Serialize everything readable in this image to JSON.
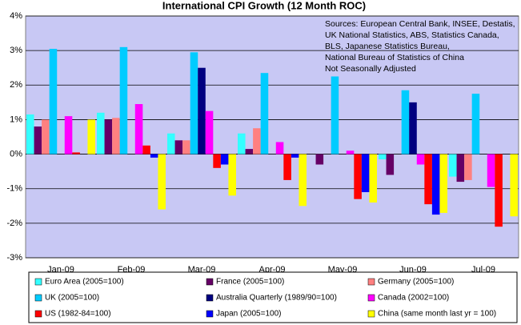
{
  "chart_data": {
    "type": "bar",
    "title": "International CPI Growth (12 Month ROC)",
    "annotation": [
      "Sources: European Central Bank, INSEE, Destatis,",
      "UK National Statistics, ABS, Statistics Canada,",
      "BLS, Japanese Statistics Bureau,",
      "National Bureau of Statistics of China",
      "Not Seasonally Adjusted"
    ],
    "categories": [
      "Jan-09",
      "Feb-09",
      "Mar-09",
      "Apr-09",
      "May-09",
      "Jun-09",
      "Jul-09"
    ],
    "series": [
      {
        "name": "Euro Area (2005=100)",
        "color": "#33ffff",
        "values": [
          1.15,
          1.2,
          0.6,
          0.6,
          0.0,
          -0.15,
          -0.65
        ]
      },
      {
        "name": "France (2005=100)",
        "color": "#660066",
        "values": [
          0.8,
          1.0,
          0.4,
          0.15,
          -0.3,
          -0.6,
          -0.8
        ]
      },
      {
        "name": "Germany (2005=100)",
        "color": "#ff8080",
        "values": [
          1.0,
          1.05,
          0.4,
          0.75,
          0.0,
          0.0,
          -0.75
        ]
      },
      {
        "name": "UK (2005=100)",
        "color": "#00ccff",
        "values": [
          3.05,
          3.1,
          2.95,
          2.35,
          2.25,
          1.85,
          1.75
        ]
      },
      {
        "name": "Australia Quarterly (1989/90=100)",
        "color": "#000080",
        "values": [
          null,
          null,
          2.5,
          null,
          null,
          1.5,
          null
        ]
      },
      {
        "name": "Canada (2002=100)",
        "color": "#ff00ff",
        "values": [
          1.1,
          1.45,
          1.25,
          0.35,
          0.1,
          -0.3,
          -0.95
        ]
      },
      {
        "name": "US (1982-84=100)",
        "color": "#ff0000",
        "values": [
          0.05,
          0.25,
          -0.4,
          -0.75,
          -1.3,
          -1.45,
          -2.1
        ]
      },
      {
        "name": "Japan (2005=100)",
        "color": "#0000ff",
        "values": [
          0.0,
          -0.1,
          -0.3,
          -0.1,
          -1.1,
          -1.75,
          null
        ]
      },
      {
        "name": "China (same month last yr = 100)",
        "color": "#ffff00",
        "values": [
          1.0,
          -1.6,
          -1.2,
          -1.5,
          -1.4,
          -1.7,
          -1.8
        ]
      }
    ],
    "ylim": [
      -3,
      4
    ],
    "yticks": [
      {
        "value": -3,
        "label": "-3%"
      },
      {
        "value": -2,
        "label": "-2%"
      },
      {
        "value": -1,
        "label": "-1%"
      },
      {
        "value": 0,
        "label": "0%"
      },
      {
        "value": 1,
        "label": "1%"
      },
      {
        "value": 2,
        "label": "2%"
      },
      {
        "value": 3,
        "label": "3%"
      },
      {
        "value": 4,
        "label": "4%"
      }
    ],
    "grid": true,
    "background": "#c8c8f4"
  }
}
